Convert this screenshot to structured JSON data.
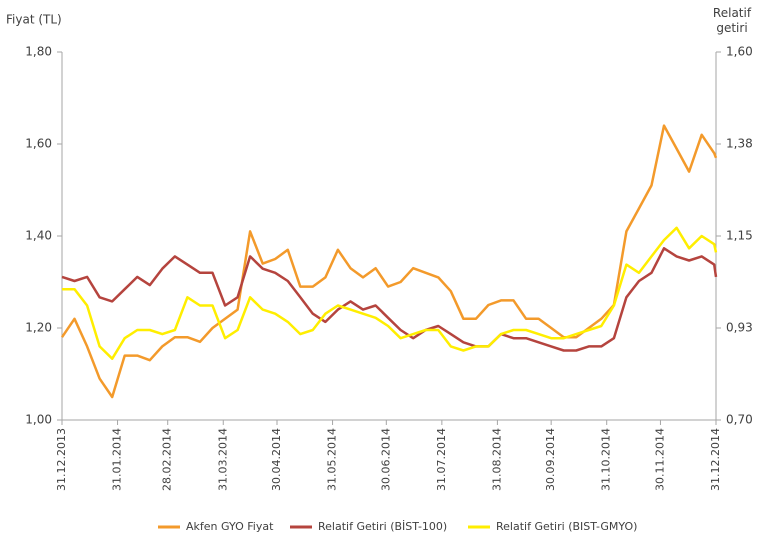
{
  "chart_data": {
    "type": "line",
    "y_label": "Fiyat (TL)",
    "y2_label": "Relatif getiri",
    "x": [
      "31.12.2013",
      "07.01.2014",
      "14.01.2014",
      "21.01.2014",
      "28.01.2014",
      "04.02.2014",
      "11.02.2014",
      "18.02.2014",
      "25.02.2014",
      "04.03.2014",
      "11.03.2014",
      "18.03.2014",
      "25.03.2014",
      "01.04.2014",
      "08.04.2014",
      "15.04.2014",
      "22.04.2014",
      "29.04.2014",
      "06.05.2014",
      "13.05.2014",
      "20.05.2014",
      "27.05.2014",
      "03.06.2014",
      "10.06.2014",
      "17.06.2014",
      "24.06.2014",
      "01.07.2014",
      "08.07.2014",
      "15.07.2014",
      "22.07.2014",
      "29.07.2014",
      "05.08.2014",
      "12.08.2014",
      "19.08.2014",
      "26.08.2014",
      "02.09.2014",
      "09.09.2014",
      "16.09.2014",
      "23.09.2014",
      "30.09.2014",
      "07.10.2014",
      "14.10.2014",
      "21.10.2014",
      "28.10.2014",
      "04.11.2014",
      "11.11.2014",
      "18.11.2014",
      "25.11.2014",
      "02.12.2014",
      "09.12.2014",
      "16.12.2014",
      "23.12.2014",
      "30.12.2014",
      "31.12.2014"
    ],
    "series": [
      {
        "name": "Akfen GYO Fiyat",
        "color": "#f39a2b",
        "axis": "y",
        "values": [
          1.18,
          1.22,
          1.16,
          1.09,
          1.05,
          1.14,
          1.14,
          1.13,
          1.16,
          1.18,
          1.18,
          1.17,
          1.2,
          1.22,
          1.24,
          1.41,
          1.34,
          1.35,
          1.37,
          1.29,
          1.29,
          1.31,
          1.37,
          1.33,
          1.31,
          1.33,
          1.29,
          1.3,
          1.33,
          1.32,
          1.31,
          1.28,
          1.22,
          1.22,
          1.25,
          1.26,
          1.26,
          1.22,
          1.22,
          1.2,
          1.18,
          1.18,
          1.2,
          1.22,
          1.25,
          1.41,
          1.46,
          1.51,
          1.64,
          1.59,
          1.54,
          1.62,
          1.58,
          1.57
        ]
      },
      {
        "name": "Relatif Getiri (BİST-100)",
        "color": "#b5443e",
        "axis": "y2",
        "values": [
          1.05,
          1.04,
          1.05,
          1.0,
          0.99,
          1.02,
          1.05,
          1.03,
          1.07,
          1.1,
          1.08,
          1.06,
          1.06,
          0.98,
          1.0,
          1.1,
          1.07,
          1.06,
          1.04,
          1.0,
          0.96,
          0.94,
          0.97,
          0.99,
          0.97,
          0.98,
          0.95,
          0.92,
          0.9,
          0.92,
          0.93,
          0.91,
          0.89,
          0.88,
          0.88,
          0.91,
          0.9,
          0.9,
          0.89,
          0.88,
          0.87,
          0.87,
          0.88,
          0.88,
          0.9,
          1.0,
          1.04,
          1.06,
          1.12,
          1.1,
          1.09,
          1.1,
          1.08,
          1.05
        ]
      },
      {
        "name": "Relatif Getiri (BIST-GMYO)",
        "color": "#ffee00",
        "axis": "y2",
        "values": [
          1.02,
          1.02,
          0.98,
          0.88,
          0.85,
          0.9,
          0.92,
          0.92,
          0.91,
          0.92,
          1.0,
          0.98,
          0.98,
          0.9,
          0.92,
          1.0,
          0.97,
          0.96,
          0.94,
          0.91,
          0.92,
          0.96,
          0.98,
          0.97,
          0.96,
          0.95,
          0.93,
          0.9,
          0.91,
          0.92,
          0.92,
          0.88,
          0.87,
          0.88,
          0.88,
          0.91,
          0.92,
          0.92,
          0.91,
          0.9,
          0.9,
          0.91,
          0.92,
          0.93,
          0.98,
          1.08,
          1.06,
          1.1,
          1.14,
          1.17,
          1.12,
          1.15,
          1.13,
          1.11
        ]
      }
    ],
    "ylim": [
      1.0,
      1.8
    ],
    "yticks": [
      {
        "value": 1.0,
        "label": "1,00"
      },
      {
        "value": 1.2,
        "label": "1,20"
      },
      {
        "value": 1.4,
        "label": "1,40"
      },
      {
        "value": 1.6,
        "label": "1,60"
      },
      {
        "value": 1.8,
        "label": "1,80"
      }
    ],
    "y2lim": [
      0.7,
      1.6
    ],
    "y2ticks": [
      {
        "value": 0.7,
        "label": "0,70"
      },
      {
        "value": 0.925,
        "label": "0,93"
      },
      {
        "value": 1.15,
        "label": "1,15"
      },
      {
        "value": 1.375,
        "label": "1,38"
      },
      {
        "value": 1.6,
        "label": "1,60"
      }
    ],
    "xticks": [
      "31.12.2013",
      "31.01.2014",
      "28.02.2014",
      "31.03.2014",
      "30.04.2014",
      "31.05.2014",
      "30.06.2014",
      "31.07.2014",
      "31.08.2014",
      "30.09.2014",
      "31.10.2014",
      "30.11.2014",
      "31.12.2014"
    ],
    "legend": "bottom"
  }
}
